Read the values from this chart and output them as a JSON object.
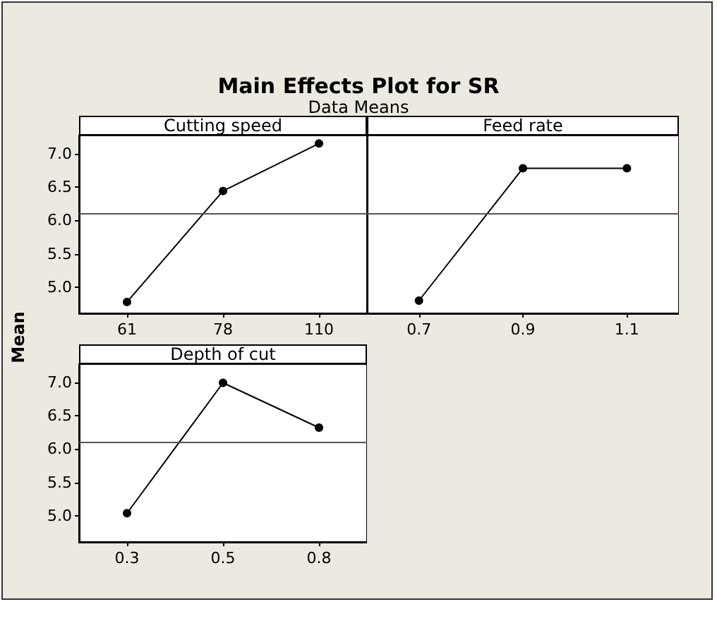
{
  "chart_data": [
    {
      "type": "line",
      "title": "Main Effects Plot for SR",
      "subtitle": "Data Means",
      "xlabel": "Cutting speed",
      "ylabel": "Mean",
      "categories": [
        "61",
        "78",
        "110"
      ],
      "values": [
        4.78,
        6.44,
        7.15
      ],
      "color": "#000000",
      "marker": "circle",
      "line_style": "solid",
      "grid": false,
      "ylim": [
        4.61,
        7.27
      ],
      "yticks": [
        {
          "value": 5,
          "label": "5.0"
        },
        {
          "value": 5.5,
          "label": "5.5"
        },
        {
          "value": 6,
          "label": "6.0"
        },
        {
          "value": 6.5,
          "label": "6.5"
        },
        {
          "value": 7,
          "label": "7.0"
        }
      ],
      "ref_lines": [
        {
          "axis": "y",
          "value": 6.11,
          "color": "#555555"
        }
      ]
    },
    {
      "type": "line",
      "xlabel": "Feed rate",
      "categories": [
        "0.7",
        "0.9",
        "1.1"
      ],
      "values": [
        4.8,
        6.78,
        6.78
      ],
      "color": "#000000",
      "marker": "circle",
      "line_style": "solid",
      "grid": false,
      "tick_labels": "x",
      "ylim": [
        4.61,
        7.27
      ],
      "ref_lines": [
        {
          "axis": "y",
          "value": 6.11,
          "color": "#555555"
        }
      ]
    },
    {
      "type": "line",
      "xlabel": "Depth of cut",
      "categories": [
        "0.3",
        "0.5",
        "0.8"
      ],
      "values": [
        5.04,
        6.99,
        6.32
      ],
      "color": "#000000",
      "marker": "circle",
      "line_style": "solid",
      "grid": false,
      "ylim": [
        4.61,
        7.27
      ],
      "yticks": [
        {
          "value": 5,
          "label": "5.0"
        },
        {
          "value": 5.5,
          "label": "5.5"
        },
        {
          "value": 6,
          "label": "6.0"
        },
        {
          "value": 6.5,
          "label": "6.5"
        },
        {
          "value": 7,
          "label": "7.0"
        }
      ],
      "ref_lines": [
        {
          "axis": "y",
          "value": 6.11,
          "color": "#555555"
        }
      ]
    }
  ]
}
